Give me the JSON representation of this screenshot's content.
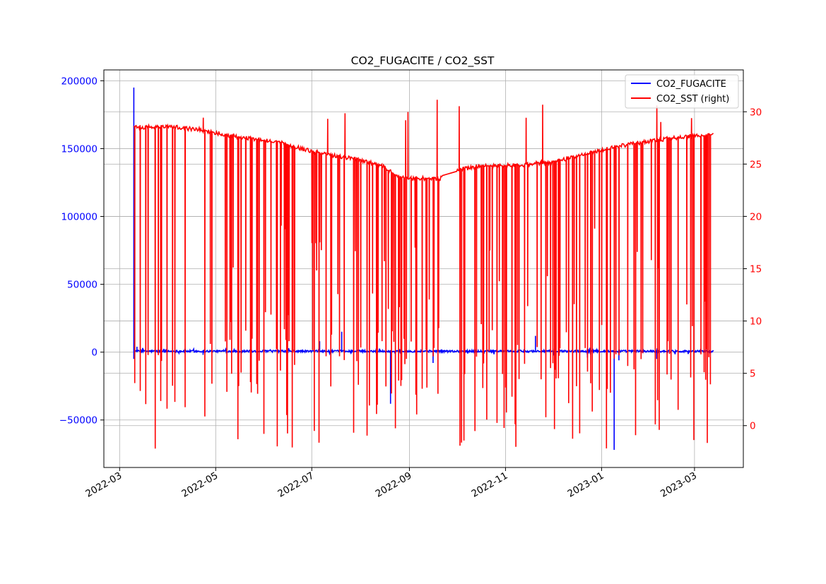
{
  "chart_data": {
    "type": "line",
    "title": "CO2_FUGACITE / CO2_SST",
    "xlabel": "",
    "ylabel_left": "",
    "ylabel_right": "",
    "x_ticks": [
      "2022-03",
      "2022-05",
      "2022-07",
      "2022-09",
      "2022-11",
      "2023-01",
      "2023-03"
    ],
    "x_range": [
      "2022-02-19",
      "2023-04-01"
    ],
    "y_left_ticks": [
      -50000,
      0,
      50000,
      100000,
      150000,
      200000
    ],
    "y_left_range": [
      -85000,
      208000
    ],
    "y_right_ticks": [
      0,
      5,
      10,
      15,
      20,
      25,
      30
    ],
    "y_right_range": [
      -4,
      34
    ],
    "grid": true,
    "legend_position": "top-right",
    "colors": {
      "left_axis": "#0000ff",
      "right_axis": "#ff0000"
    },
    "series": [
      {
        "name": "CO2_FUGACITE",
        "axis": "left",
        "color": "#0000ff",
        "baseline": 700,
        "spikes": [
          {
            "date": "2022-03-10",
            "value": 195000
          },
          {
            "date": "2022-03-10",
            "value": -5000
          },
          {
            "date": "2022-03-12",
            "value": 4000
          },
          {
            "date": "2022-04-23",
            "value": -2000
          },
          {
            "date": "2022-07-06",
            "value": 8000
          },
          {
            "date": "2022-07-20",
            "value": 15000
          },
          {
            "date": "2022-08-20",
            "value": -38000
          },
          {
            "date": "2022-09-16",
            "value": -8000
          },
          {
            "date": "2022-11-20",
            "value": 12000
          },
          {
            "date": "2022-12-23",
            "value": -4000
          },
          {
            "date": "2023-01-09",
            "value": -72000
          },
          {
            "date": "2023-01-12",
            "value": -6000
          },
          {
            "date": "2023-02-05",
            "value": -5000
          }
        ]
      },
      {
        "name": "CO2_SST (right)",
        "axis": "right",
        "color": "#ff0000",
        "baseline_points": [
          {
            "date": "2022-03-10",
            "value": 28.5
          },
          {
            "date": "2022-04-01",
            "value": 28.6
          },
          {
            "date": "2022-04-20",
            "value": 28.3
          },
          {
            "date": "2022-05-15",
            "value": 27.6
          },
          {
            "date": "2022-06-10",
            "value": 27.1
          },
          {
            "date": "2022-07-01",
            "value": 26.2
          },
          {
            "date": "2022-08-01",
            "value": 25.4
          },
          {
            "date": "2022-08-15",
            "value": 24.8
          },
          {
            "date": "2022-08-25",
            "value": 23.7
          },
          {
            "date": "2022-09-20",
            "value": 23.6
          },
          {
            "date": "2022-10-01",
            "value": 24.4
          },
          {
            "date": "2022-10-15",
            "value": 24.8
          },
          {
            "date": "2022-11-10",
            "value": 24.9
          },
          {
            "date": "2022-12-01",
            "value": 25.2
          },
          {
            "date": "2022-12-20",
            "value": 25.9
          },
          {
            "date": "2023-01-15",
            "value": 26.8
          },
          {
            "date": "2023-02-10",
            "value": 27.4
          },
          {
            "date": "2023-03-13",
            "value": 27.8
          }
        ],
        "gap": [
          "2022-09-22",
          "2022-10-01"
        ],
        "min_value": -2.2,
        "max_value": 31.2
      }
    ]
  }
}
